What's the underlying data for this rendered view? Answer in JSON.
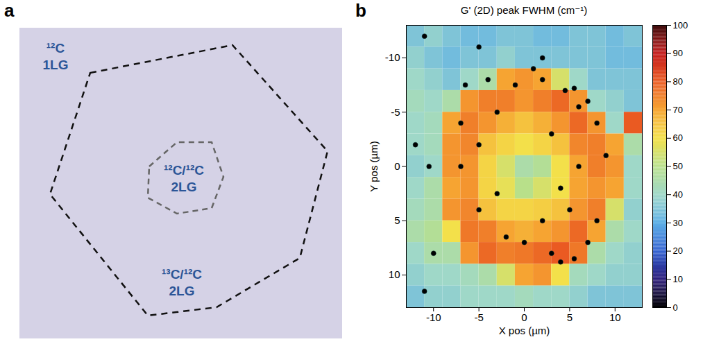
{
  "panel_a": {
    "letter": "a",
    "labels": [
      [
        "¹²C",
        "1LG"
      ],
      [
        "¹²C/¹²C",
        "2LG"
      ],
      [
        "¹³C/¹²C",
        "2LG"
      ]
    ]
  },
  "chart_data": {
    "type": "heatmap",
    "panel_letter": "b",
    "title": "G' (2D) peak FWHM (cm⁻¹)",
    "xlabel": "X pos (µm)",
    "ylabel": "Y pos (µm)",
    "xlim": [
      -13,
      13
    ],
    "ylim": [
      13,
      -13
    ],
    "xticks": [
      -10,
      -5,
      0,
      5,
      10
    ],
    "yticks": [
      -10,
      -5,
      0,
      5,
      10
    ],
    "heatmap": {
      "x": [
        -12,
        -10,
        -8,
        -6,
        -4,
        -2,
        0,
        2,
        4,
        6,
        8,
        10,
        12
      ],
      "y": [
        -12,
        -10,
        -8,
        -6,
        -4,
        -2,
        0,
        2,
        4,
        6,
        8,
        10,
        12
      ],
      "values": [
        [
          35,
          38,
          35,
          33,
          33,
          35,
          35,
          33,
          33,
          35,
          35,
          33,
          35
        ],
        [
          38,
          35,
          33,
          35,
          35,
          38,
          35,
          35,
          35,
          35,
          35,
          33,
          33
        ],
        [
          40,
          38,
          35,
          40,
          45,
          70,
          72,
          70,
          55,
          40,
          35,
          35,
          35
        ],
        [
          42,
          40,
          45,
          72,
          75,
          75,
          72,
          75,
          78,
          72,
          40,
          38,
          35
        ],
        [
          40,
          42,
          70,
          75,
          72,
          68,
          65,
          68,
          72,
          78,
          72,
          40,
          80
        ],
        [
          40,
          42,
          72,
          74,
          65,
          62,
          60,
          62,
          65,
          74,
          75,
          70,
          45
        ],
        [
          38,
          40,
          72,
          72,
          62,
          55,
          45,
          48,
          60,
          70,
          75,
          72,
          40
        ],
        [
          40,
          45,
          70,
          72,
          62,
          58,
          50,
          55,
          60,
          70,
          72,
          70,
          40
        ],
        [
          42,
          45,
          72,
          74,
          65,
          62,
          62,
          63,
          65,
          72,
          75,
          55,
          38
        ],
        [
          45,
          48,
          60,
          76,
          75,
          70,
          68,
          70,
          72,
          78,
          70,
          45,
          40
        ],
        [
          40,
          45,
          45,
          72,
          78,
          75,
          76,
          78,
          80,
          76,
          45,
          40,
          38
        ],
        [
          38,
          40,
          40,
          42,
          45,
          55,
          70,
          72,
          60,
          42,
          40,
          38,
          38
        ],
        [
          35,
          38,
          38,
          40,
          40,
          40,
          42,
          40,
          40,
          38,
          35,
          35,
          35
        ]
      ]
    },
    "points": {
      "x": [
        -6.5,
        -3,
        -1,
        2,
        4.5,
        5.5,
        6,
        7,
        8,
        -7,
        -5,
        -7,
        -3,
        -5,
        -2,
        0,
        2,
        3,
        4,
        5.5,
        7,
        8,
        4,
        3,
        1,
        -4,
        9,
        5,
        6,
        -11,
        -12,
        -10.5,
        -10,
        -11,
        -5,
        2
      ],
      "y": [
        -7.5,
        -5,
        -7.5,
        -8,
        -7,
        -7.2,
        -5.5,
        -6,
        -4,
        -4,
        -2,
        0,
        2.5,
        4,
        6.5,
        7,
        5,
        8,
        8.8,
        8.5,
        7,
        5,
        2,
        -3,
        -9,
        -8,
        -1,
        4,
        0,
        -12,
        -2,
        0,
        8,
        11.5,
        -11,
        -10
      ],
      "values": [
        0,
        0,
        0,
        0,
        0,
        0,
        0,
        0,
        0,
        0,
        0,
        0,
        0,
        0,
        0,
        0,
        0,
        0,
        0,
        0,
        0,
        0,
        0,
        0,
        0,
        0,
        0,
        0,
        0,
        0,
        0,
        0,
        0,
        0,
        0,
        0
      ]
    },
    "colorbar": {
      "range": [
        0,
        100
      ],
      "ticks": [
        0,
        10,
        20,
        30,
        40,
        50,
        60,
        70,
        80,
        90,
        100
      ]
    }
  }
}
